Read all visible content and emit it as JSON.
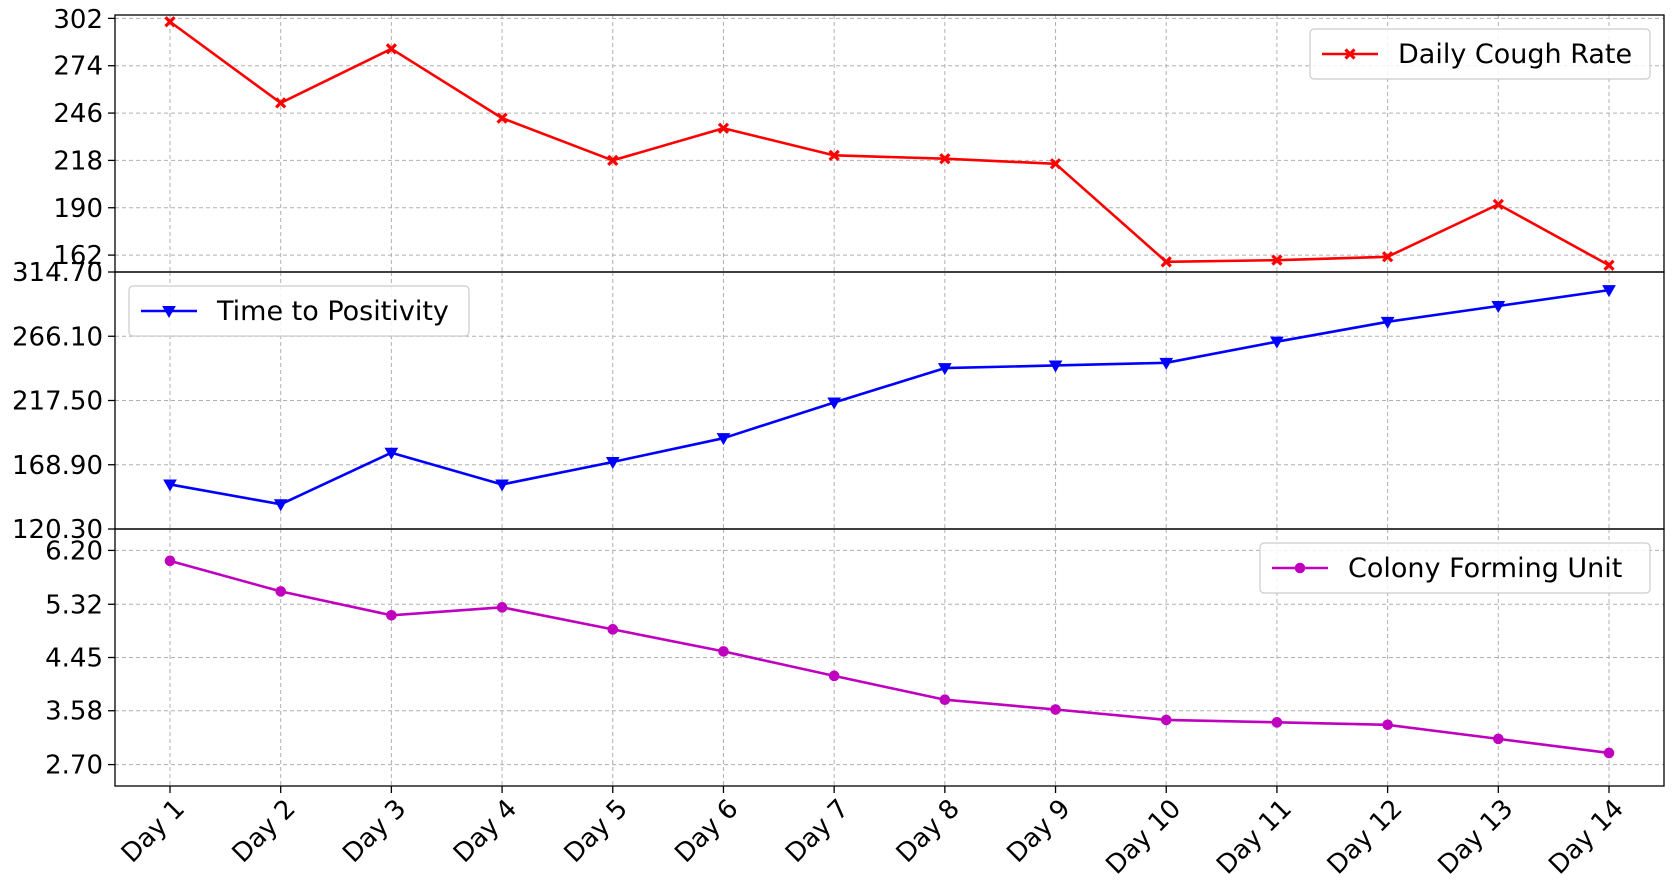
{
  "chart_data": {
    "type": "line",
    "categories": [
      "Day 1",
      "Day 2",
      "Day 3",
      "Day 4",
      "Day 5",
      "Day 6",
      "Day 7",
      "Day 8",
      "Day 9",
      "Day 10",
      "Day 11",
      "Day 12",
      "Day 13",
      "Day 14"
    ],
    "legend_placement": [
      "top-right",
      "top-left",
      "top-right"
    ],
    "grid": true,
    "panels": [
      {
        "series_name": "Daily Cough Rate",
        "color": "#ff0000",
        "marker": "x",
        "values": [
          300,
          252,
          284,
          243,
          218,
          237,
          221,
          219,
          216,
          158,
          159,
          161,
          192,
          156
        ],
        "ylim": [
          152,
          304
        ],
        "yticks": [
          162,
          190,
          218,
          246,
          274,
          302
        ],
        "ytick_labels": [
          "162",
          "190",
          "218",
          "246",
          "274",
          "302"
        ]
      },
      {
        "series_name": "Time to Positivity",
        "color": "#0000ff",
        "marker": "triangle-down",
        "values": [
          154,
          139,
          178,
          154,
          171,
          189,
          216,
          242,
          244,
          246,
          262,
          277,
          289,
          301
        ],
        "ylim": [
          120.3,
          314.7
        ],
        "yticks": [
          120.3,
          168.9,
          217.5,
          266.1,
          314.7
        ],
        "ytick_labels": [
          "120.30",
          "168.90",
          "217.50",
          "266.10",
          "314.70"
        ]
      },
      {
        "series_name": "Colony Forming Unit",
        "color": "#bf00bf",
        "marker": "circle",
        "values": [
          6.03,
          5.53,
          5.14,
          5.27,
          4.91,
          4.55,
          4.15,
          3.76,
          3.6,
          3.43,
          3.39,
          3.35,
          3.12,
          2.89
        ],
        "ylim": [
          2.35,
          6.55
        ],
        "yticks": [
          2.7,
          3.58,
          4.45,
          5.32,
          6.2
        ],
        "ytick_labels": [
          "2.70",
          "3.58",
          "4.45",
          "5.32",
          "6.20"
        ]
      }
    ]
  }
}
